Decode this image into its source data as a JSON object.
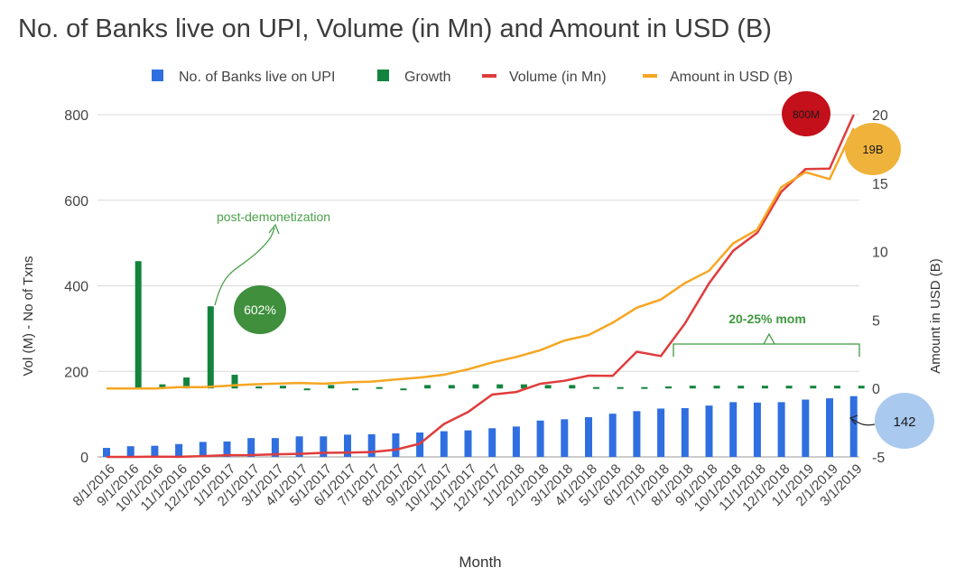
{
  "chart_data": {
    "type": "bar",
    "title": "No. of Banks live on UPI, Volume (in Mn) and Amount in USD (B)",
    "xlabel": "Month",
    "ylabel_left": "Vol (M) - No of Txns",
    "ylabel_right": "Amount in USD (B)",
    "ylim_left": [
      0,
      800
    ],
    "ylim_right": [
      -5,
      20
    ],
    "yticks_left": [
      "0",
      "200",
      "400",
      "600",
      "800"
    ],
    "yticks_right": [
      "-5",
      "0",
      "5",
      "10",
      "15",
      "20"
    ],
    "grid": true,
    "legend_position": "top",
    "categories": [
      "8/1/2016",
      "9/1/2016",
      "10/1/2016",
      "11/1/2016",
      "12/1/2016",
      "1/1/2017",
      "2/1/2017",
      "3/1/2017",
      "4/1/2017",
      "5/1/2017",
      "6/1/2017",
      "7/1/2017",
      "8/1/2017",
      "9/1/2017",
      "10/1/2017",
      "11/1/2017",
      "12/1/2017",
      "1/1/2018",
      "2/1/2018",
      "3/1/2018",
      "4/1/2018",
      "5/1/2018",
      "6/1/2018",
      "7/1/2018",
      "8/1/2018",
      "9/1/2018",
      "10/1/2018",
      "11/1/2018",
      "12/1/2018",
      "1/1/2019",
      "2/1/2019",
      "3/1/2019"
    ],
    "series": [
      {
        "name": "No. of Banks live on UPI",
        "type": "bar",
        "axis": "left",
        "color": "#2f6fe0",
        "values": [
          21,
          25,
          26,
          30,
          35,
          36,
          44,
          44,
          48,
          48,
          52,
          53,
          55,
          57,
          60,
          62,
          67,
          71,
          85,
          88,
          93,
          101,
          107,
          113,
          114,
          120,
          128,
          127,
          128,
          134,
          137,
          142
        ]
      },
      {
        "name": "Growth",
        "type": "bar",
        "axis": "right",
        "color": "#13843e",
        "values": [
          null,
          9.3,
          0.3,
          0.8,
          6.0,
          1.0,
          0.15,
          0.2,
          0.0,
          0.25,
          0.0,
          0.1,
          0.0,
          0.25,
          0.25,
          0.3,
          0.3,
          0.3,
          0.25,
          0.25,
          0.1,
          0.1,
          0.1,
          0.15,
          0.2,
          0.2,
          0.2,
          0.2,
          0.2,
          0.2,
          0.2,
          0.2
        ]
      },
      {
        "name": "Volume (in Mn)",
        "type": "line",
        "axis": "left",
        "color": "#e03c3c",
        "values": [
          0.1,
          0.1,
          0.5,
          0.3,
          2,
          4,
          4.2,
          6.2,
          7.2,
          9.4,
          10.2,
          11.4,
          16.8,
          30.9,
          76.9,
          105,
          145.6,
          151.7,
          171,
          178,
          190,
          189.5,
          246,
          235.7,
          312,
          405.9,
          482,
          524,
          620,
          672.7,
          674,
          800
        ]
      },
      {
        "name": "Amount in USD (B)",
        "type": "line",
        "axis": "right",
        "color": "#f5a623",
        "values": [
          0.0,
          0.0,
          0.0,
          0.1,
          0.1,
          0.2,
          0.3,
          0.35,
          0.4,
          0.35,
          0.45,
          0.5,
          0.65,
          0.8,
          1.0,
          1.4,
          1.9,
          2.3,
          2.8,
          3.5,
          3.9,
          4.8,
          5.9,
          6.5,
          7.7,
          8.6,
          10.6,
          11.6,
          14.7,
          15.8,
          15.3,
          19.0
        ]
      }
    ],
    "annotations": {
      "post_demonetization": "post-demonetization",
      "growth_badge": "602%",
      "mom": "20-25% mom",
      "volume_badge": "800M",
      "amount_badge": "19B",
      "banks_badge": "142"
    },
    "annotation_colors": {
      "post_demonetization": "#4aa14a",
      "growth_badge": "#3f8f3c",
      "volume_badge": "#c3101a",
      "amount_badge": "#efb33b",
      "banks_badge": "#a9c9ee"
    }
  }
}
